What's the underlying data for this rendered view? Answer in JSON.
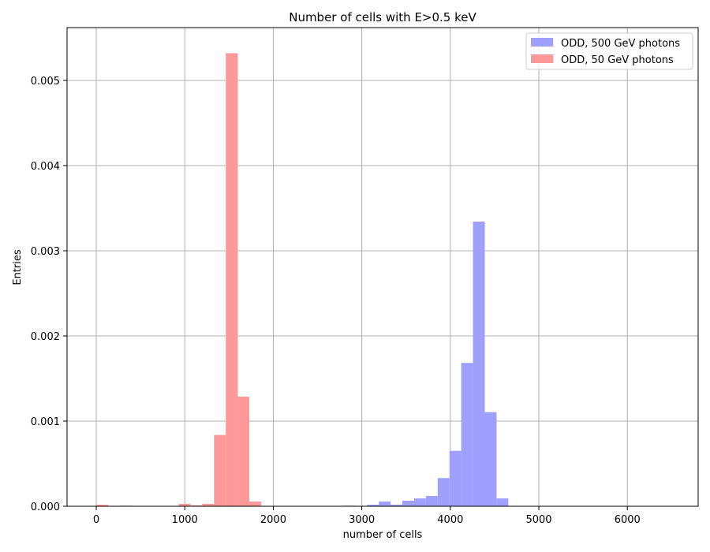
{
  "chart_data": {
    "type": "bar",
    "title": "Number of cells with E>0.5 keV",
    "xlabel": "number of cells",
    "ylabel": "Entries",
    "xlim": [
      -330,
      6800
    ],
    "ylim": [
      0,
      0.00562
    ],
    "grid": true,
    "legend_placement": "top-right",
    "x_ticks": [
      0,
      1000,
      2000,
      3000,
      4000,
      5000,
      6000
    ],
    "y_ticks": [
      0.0,
      0.001,
      0.002,
      0.003,
      0.004,
      0.005
    ],
    "x_tick_labels": [
      "0",
      "1000",
      "2000",
      "3000",
      "4000",
      "5000",
      "6000"
    ],
    "y_tick_labels": [
      "0.000",
      "0.001",
      "0.002",
      "0.003",
      "0.004",
      "0.005"
    ],
    "bin_width": 133,
    "series": [
      {
        "name": "ODD, 500 GeV photons",
        "color": "#9f9ffe",
        "bins": [
          {
            "x": 2793,
            "y": 7e-06
          },
          {
            "x": 3059,
            "y": 1.8e-05
          },
          {
            "x": 3192,
            "y": 5.5e-05
          },
          {
            "x": 3325,
            "y": 1.8e-05
          },
          {
            "x": 3458,
            "y": 6.5e-05
          },
          {
            "x": 3591,
            "y": 9.2e-05
          },
          {
            "x": 3724,
            "y": 0.00012
          },
          {
            "x": 3857,
            "y": 0.000331
          },
          {
            "x": 3990,
            "y": 0.000651
          },
          {
            "x": 4123,
            "y": 0.001683
          },
          {
            "x": 4256,
            "y": 0.003342
          },
          {
            "x": 4389,
            "y": 0.001105
          },
          {
            "x": 4522,
            "y": 9.2e-05
          }
        ]
      },
      {
        "name": "ODD, 50 GeV photons",
        "color": "#ff9999",
        "bins": [
          {
            "x": 0,
            "y": 1.8e-05
          },
          {
            "x": 266,
            "y": 7e-06
          },
          {
            "x": 931,
            "y": 2.8e-05
          },
          {
            "x": 1064,
            "y": 1e-05
          },
          {
            "x": 1197,
            "y": 2.8e-05
          },
          {
            "x": 1330,
            "y": 0.000837
          },
          {
            "x": 1463,
            "y": 0.00532
          },
          {
            "x": 1596,
            "y": 0.001287
          },
          {
            "x": 1729,
            "y": 5.5e-05
          }
        ]
      }
    ]
  }
}
